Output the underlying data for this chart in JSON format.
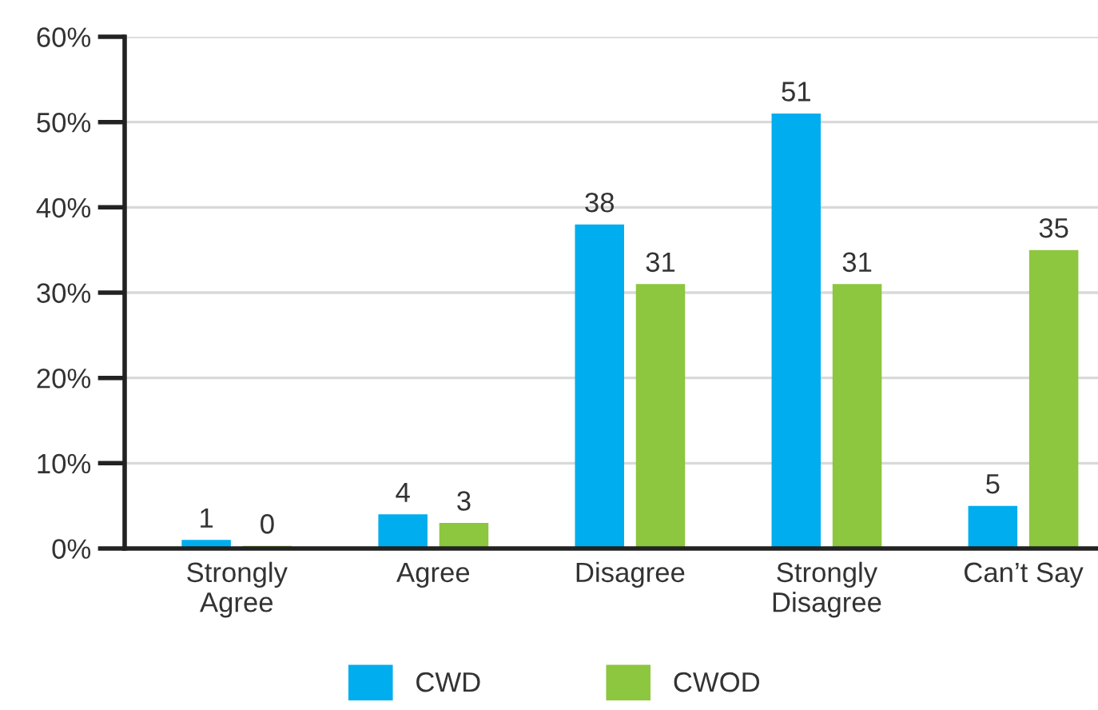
{
  "chart_data": {
    "type": "bar",
    "categories": [
      "Strongly\nAgree",
      "Agree",
      "Disagree",
      "Strongly\nDisagree",
      "Can’t Say"
    ],
    "series": [
      {
        "name": "CWD",
        "color": "#00adee",
        "values": [
          1,
          4,
          38,
          51,
          5
        ],
        "value_labels": [
          "1",
          "4",
          "38",
          "51",
          "5"
        ]
      },
      {
        "name": "CWOD",
        "color": "#8dc63f",
        "values": [
          0.3,
          3,
          31,
          31,
          35
        ],
        "value_labels": [
          "0",
          "3",
          "31",
          "31",
          "35"
        ]
      }
    ],
    "ylim": [
      0,
      60
    ],
    "yticks": [
      {
        "value": 0,
        "label": "0%"
      },
      {
        "value": 10,
        "label": "10%"
      },
      {
        "value": 20,
        "label": "20%"
      },
      {
        "value": 30,
        "label": "30%"
      },
      {
        "value": 40,
        "label": "40%"
      },
      {
        "value": 50,
        "label": "50%"
      },
      {
        "value": 60,
        "label": "60%"
      }
    ],
    "grid": "y",
    "legend": "bottom"
  }
}
